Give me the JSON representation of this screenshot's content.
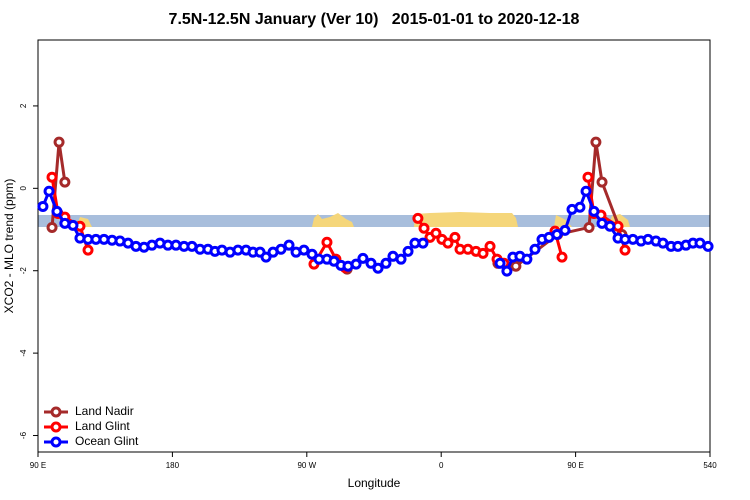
{
  "chart_data": {
    "type": "line",
    "title": "7.5N-12.5N January (Ver 10)   2015-01-01 to 2020-12-18",
    "xlabel": "Longitude",
    "ylabel": "XCO2 - MLO trend (ppm)",
    "xlim": [
      90,
      540
    ],
    "ylim": [
      -6.4,
      3.6
    ],
    "xticks": [
      {
        "value": 90,
        "label": "90 E"
      },
      180,
      {
        "value": 270,
        "label": "90 W"
      },
      {
        "value": 360,
        "label": "0"
      },
      {
        "value": 450,
        "label": "90 E"
      },
      540
    ],
    "yticks": [
      -6,
      -4,
      -2,
      0,
      2
    ],
    "legend": "bottom-left",
    "series": [
      {
        "name": "Land Nadir",
        "color": "#a52a2a",
        "x": [
          99.4,
          104.1,
          108,
          123.5,
          297,
          344.4,
          398,
          410,
          438,
          459,
          463.6,
          467.7,
          481
        ],
        "values": [
          -0.95,
          1.12,
          0.15,
          null,
          -1.96,
          null,
          -1.82,
          -1.89,
          -1.12,
          -0.95,
          1.12,
          0.15,
          -1.12
        ]
      },
      {
        "name": "Land Glint",
        "color": "#ff0000",
        "x": [
          99.4,
          103.4,
          108,
          118.1,
          123.5,
          200,
          274.8,
          283.5,
          289.5,
          295.6,
          320,
          344.4,
          348.5,
          352.5,
          356.5,
          360.5,
          364.5,
          369.2,
          372.6,
          377.9,
          383.3,
          388,
          392.7,
          397.4,
          402,
          420,
          436.2,
          440.9,
          450,
          458.3,
          462.3,
          467,
          478.4,
          483.1
        ],
        "values": [
          0.27,
          -0.61,
          -0.7,
          -0.92,
          -1.5,
          null,
          -1.84,
          -1.31,
          -1.72,
          -1.92,
          null,
          -0.73,
          -0.97,
          -1.19,
          -1.09,
          -1.24,
          -1.33,
          -1.19,
          -1.48,
          -1.48,
          -1.53,
          -1.58,
          -1.41,
          -1.72,
          -1.82,
          null,
          -1.04,
          -1.67,
          null,
          0.27,
          -0.61,
          -0.65,
          -0.92,
          -1.5
        ]
      },
      {
        "name": "Ocean Glint",
        "color": "#0000ff",
        "x": [
          93.3,
          97.4,
          102.7,
          108,
          113.4,
          118.1,
          123.5,
          128.8,
          134.2,
          139.6,
          144.9,
          150.3,
          155.6,
          161,
          166.3,
          171.7,
          177,
          182.4,
          187.8,
          193.1,
          198.5,
          203.8,
          208.5,
          213.2,
          218.6,
          223.9,
          229.3,
          234,
          238.7,
          242.7,
          247.4,
          252.7,
          258.1,
          262.8,
          268.1,
          273.5,
          278.2,
          283.5,
          288.2,
          292.9,
          297.6,
          303,
          307.6,
          313,
          317.7,
          323,
          327.7,
          333.1,
          337.8,
          342.4,
          347.8,
          375,
          399.4,
          404,
          408,
          412.7,
          417.4,
          422.8,
          427.5,
          432.2,
          437.5,
          442.9,
          447.6,
          452.9,
          457,
          462.3,
          467.7,
          473,
          478.4,
          483.1,
          488.4,
          493.8,
          498.5,
          503.8,
          508.5,
          513.9,
          518.5,
          523.9,
          528.6,
          533.3,
          538.7
        ],
        "values": [
          -0.44,
          -0.07,
          -0.56,
          -0.85,
          -0.9,
          -1.21,
          -1.24,
          -1.24,
          -1.24,
          -1.26,
          -1.28,
          -1.33,
          -1.41,
          -1.43,
          -1.38,
          -1.33,
          -1.38,
          -1.38,
          -1.41,
          -1.41,
          -1.48,
          -1.48,
          -1.53,
          -1.5,
          -1.55,
          -1.5,
          -1.5,
          -1.55,
          -1.55,
          -1.67,
          -1.55,
          -1.48,
          -1.38,
          -1.55,
          -1.5,
          -1.6,
          -1.72,
          -1.72,
          -1.77,
          -1.87,
          -1.89,
          -1.84,
          -1.7,
          -1.82,
          -1.94,
          -1.82,
          -1.65,
          -1.72,
          -1.53,
          -1.33,
          -1.33,
          null,
          -1.82,
          -2.01,
          -1.67,
          -1.65,
          -1.72,
          -1.48,
          -1.24,
          -1.19,
          -1.12,
          -1.02,
          -0.51,
          -0.46,
          -0.07,
          -0.56,
          -0.85,
          -0.92,
          -1.21,
          -1.24,
          -1.24,
          -1.28,
          -1.24,
          -1.28,
          -1.33,
          -1.41,
          -1.41,
          -1.38,
          -1.33,
          -1.33,
          -1.41
        ]
      }
    ]
  }
}
